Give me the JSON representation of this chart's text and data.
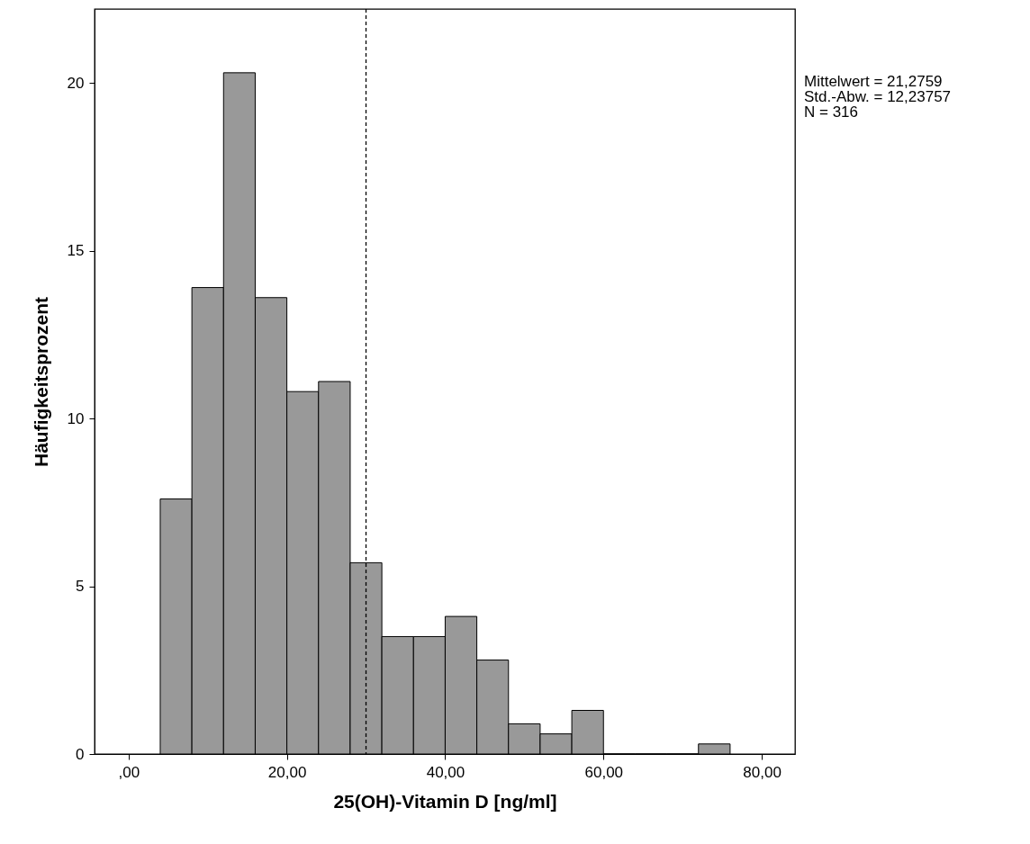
{
  "chart_data": {
    "type": "histogram",
    "xlabel": "25(OH)-Vitamin D [ng/ml]",
    "ylabel": "Häufigkeitsprozent",
    "bins": [
      4,
      8,
      12,
      16,
      20,
      24,
      28,
      32,
      36,
      40,
      44,
      48,
      52,
      56,
      60,
      64,
      68,
      72,
      76
    ],
    "values": [
      7.6,
      13.9,
      20.3,
      13.6,
      10.8,
      11.1,
      5.7,
      3.5,
      3.5,
      4.1,
      2.8,
      0.9,
      0.6,
      1.3,
      0,
      0,
      0,
      0.3
    ],
    "color": "#999999",
    "xlim": [
      -4.3,
      84.2
    ],
    "xticks": [
      {
        "value": 0,
        "label": ",00"
      },
      {
        "value": 20,
        "label": "20,00"
      },
      {
        "value": 40,
        "label": "40,00"
      },
      {
        "value": 60,
        "label": "60,00"
      },
      {
        "value": 80,
        "label": "80,00"
      }
    ],
    "ylim": [
      0,
      22.2
    ],
    "yticks": [
      0,
      5,
      10,
      15,
      20
    ],
    "grid": false,
    "ref_lines": [
      {
        "axis": "x",
        "value": 30,
        "line_style": "dashed",
        "color": "#000000"
      }
    ],
    "annotations": [
      "Mittelwert = 21,2759",
      "Std.-Abw. = 12,23757",
      "N = 316"
    ]
  }
}
